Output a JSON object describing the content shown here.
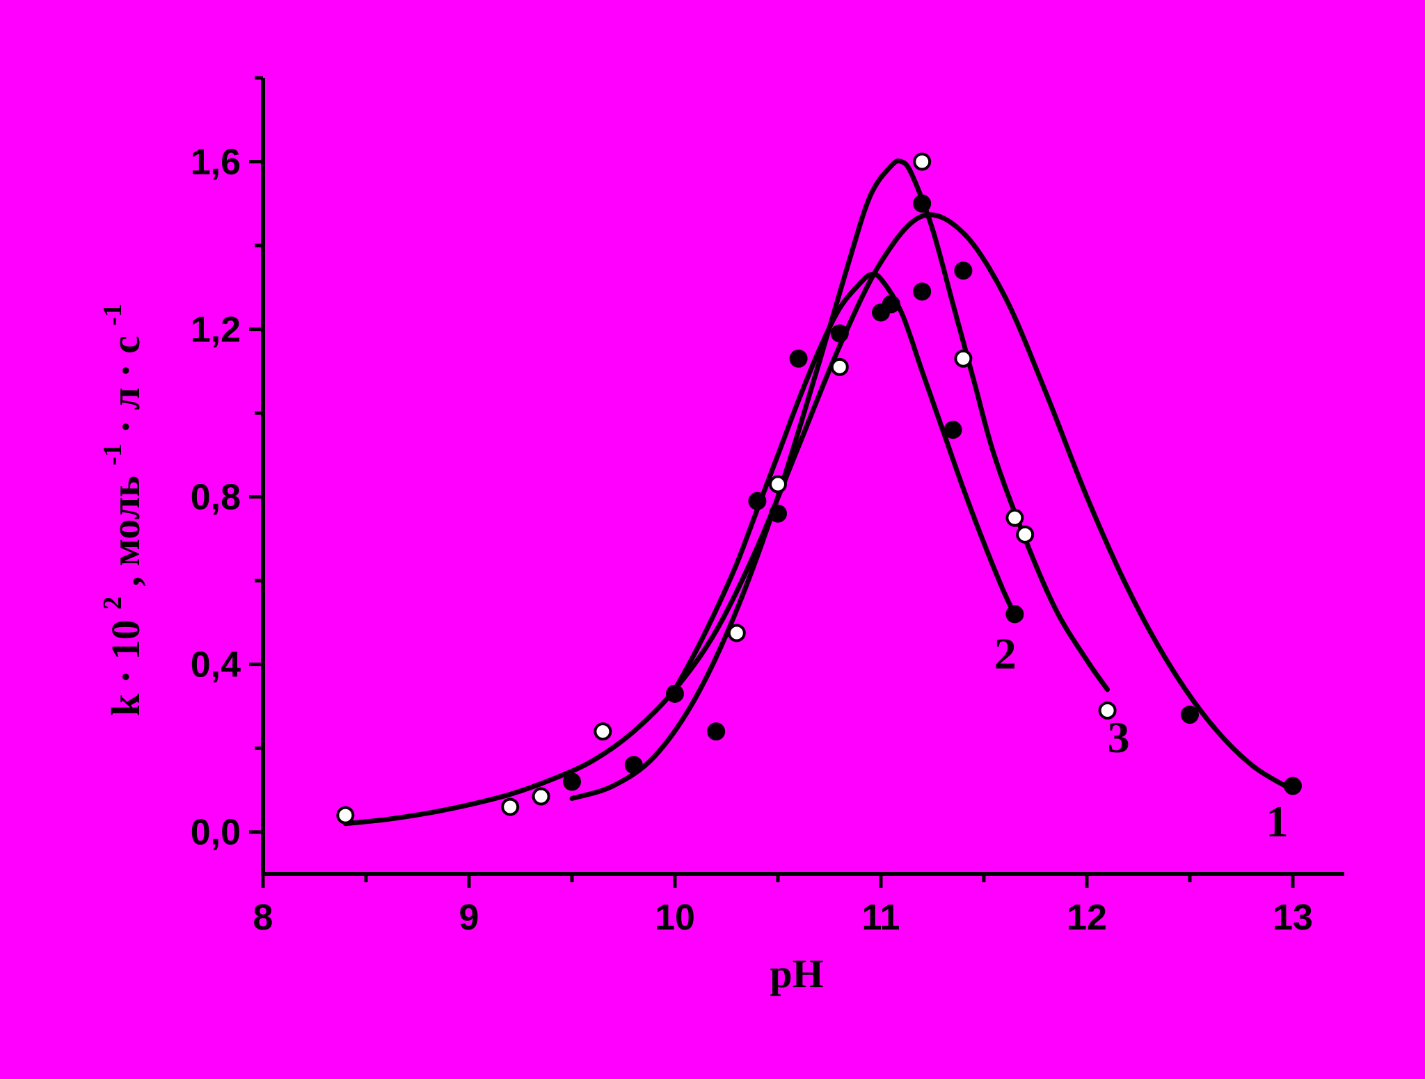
{
  "chart_data": {
    "type": "scatter",
    "xlabel": "pH",
    "ylabel": {
      "base": "k",
      "dot": "·",
      "ten": "10",
      "exp2": "2",
      "unit1": ", моль",
      "neg1": "-1",
      "sep1": " · л · с",
      "neg1b": "-1"
    },
    "xlim": [
      8,
      13.25
    ],
    "ylim": [
      -0.1,
      1.8
    ],
    "x_ticks": [
      8,
      9,
      10,
      11,
      12,
      13
    ],
    "x_tick_labels": [
      "8",
      "9",
      "10",
      "11",
      "12",
      "13"
    ],
    "y_ticks": [
      0.0,
      0.4,
      0.8,
      1.2,
      1.6
    ],
    "y_tick_labels": [
      "0,0",
      "0,4",
      "0,8",
      "1,2",
      "1,6"
    ],
    "grid": false,
    "curves": [
      {
        "label": "1",
        "x": [
          8.4,
          8.6,
          8.8,
          9.0,
          9.2,
          9.4,
          9.6,
          9.8,
          10.0,
          10.2,
          10.4,
          10.6,
          10.8,
          11.0,
          11.2,
          11.4,
          11.6,
          11.8,
          12.0,
          12.2,
          12.4,
          12.6,
          12.8,
          13.0
        ],
        "y": [
          0.02,
          0.03,
          0.045,
          0.065,
          0.09,
          0.125,
          0.17,
          0.24,
          0.34,
          0.48,
          0.68,
          0.92,
          1.16,
          1.36,
          1.47,
          1.43,
          1.28,
          1.05,
          0.8,
          0.58,
          0.4,
          0.26,
          0.16,
          0.1
        ]
      },
      {
        "label": "2",
        "x": [
          10.0,
          10.1,
          10.2,
          10.3,
          10.4,
          10.5,
          10.6,
          10.7,
          10.8,
          10.9,
          10.95,
          11.0,
          11.1,
          11.2,
          11.3,
          11.4,
          11.5,
          11.6,
          11.65
        ],
        "y": [
          0.34,
          0.43,
          0.53,
          0.64,
          0.77,
          0.9,
          1.03,
          1.15,
          1.25,
          1.31,
          1.33,
          1.32,
          1.24,
          1.1,
          0.96,
          0.82,
          0.69,
          0.57,
          0.52
        ]
      },
      {
        "label": "3",
        "x": [
          9.5,
          9.7,
          9.9,
          10.1,
          10.3,
          10.5,
          10.7,
          10.85,
          10.95,
          11.05,
          11.1,
          11.15,
          11.25,
          11.35,
          11.45,
          11.55,
          11.7,
          11.85,
          12.0,
          12.1
        ],
        "y": [
          0.08,
          0.11,
          0.18,
          0.32,
          0.53,
          0.8,
          1.12,
          1.37,
          1.52,
          1.59,
          1.6,
          1.57,
          1.44,
          1.26,
          1.08,
          0.9,
          0.7,
          0.53,
          0.41,
          0.34
        ]
      }
    ],
    "series": [
      {
        "marker": "filled",
        "x": [
          9.5,
          9.8,
          10.0,
          10.2,
          10.4,
          10.5,
          10.6,
          10.8,
          11.0,
          11.05,
          11.2,
          11.2,
          11.35,
          11.4,
          11.65,
          12.5,
          13.0
        ],
        "y": [
          0.12,
          0.16,
          0.33,
          0.24,
          0.79,
          0.76,
          1.13,
          1.19,
          1.24,
          1.26,
          1.5,
          1.29,
          0.96,
          1.34,
          0.52,
          0.28,
          0.11
        ]
      },
      {
        "marker": "open",
        "x": [
          8.4,
          9.2,
          9.35,
          9.65,
          10.3,
          10.5,
          10.8,
          11.2,
          11.4,
          11.65,
          11.7,
          12.1
        ],
        "y": [
          0.04,
          0.06,
          0.085,
          0.24,
          0.475,
          0.83,
          1.11,
          1.6,
          1.13,
          0.75,
          0.71,
          0.29
        ]
      }
    ]
  }
}
